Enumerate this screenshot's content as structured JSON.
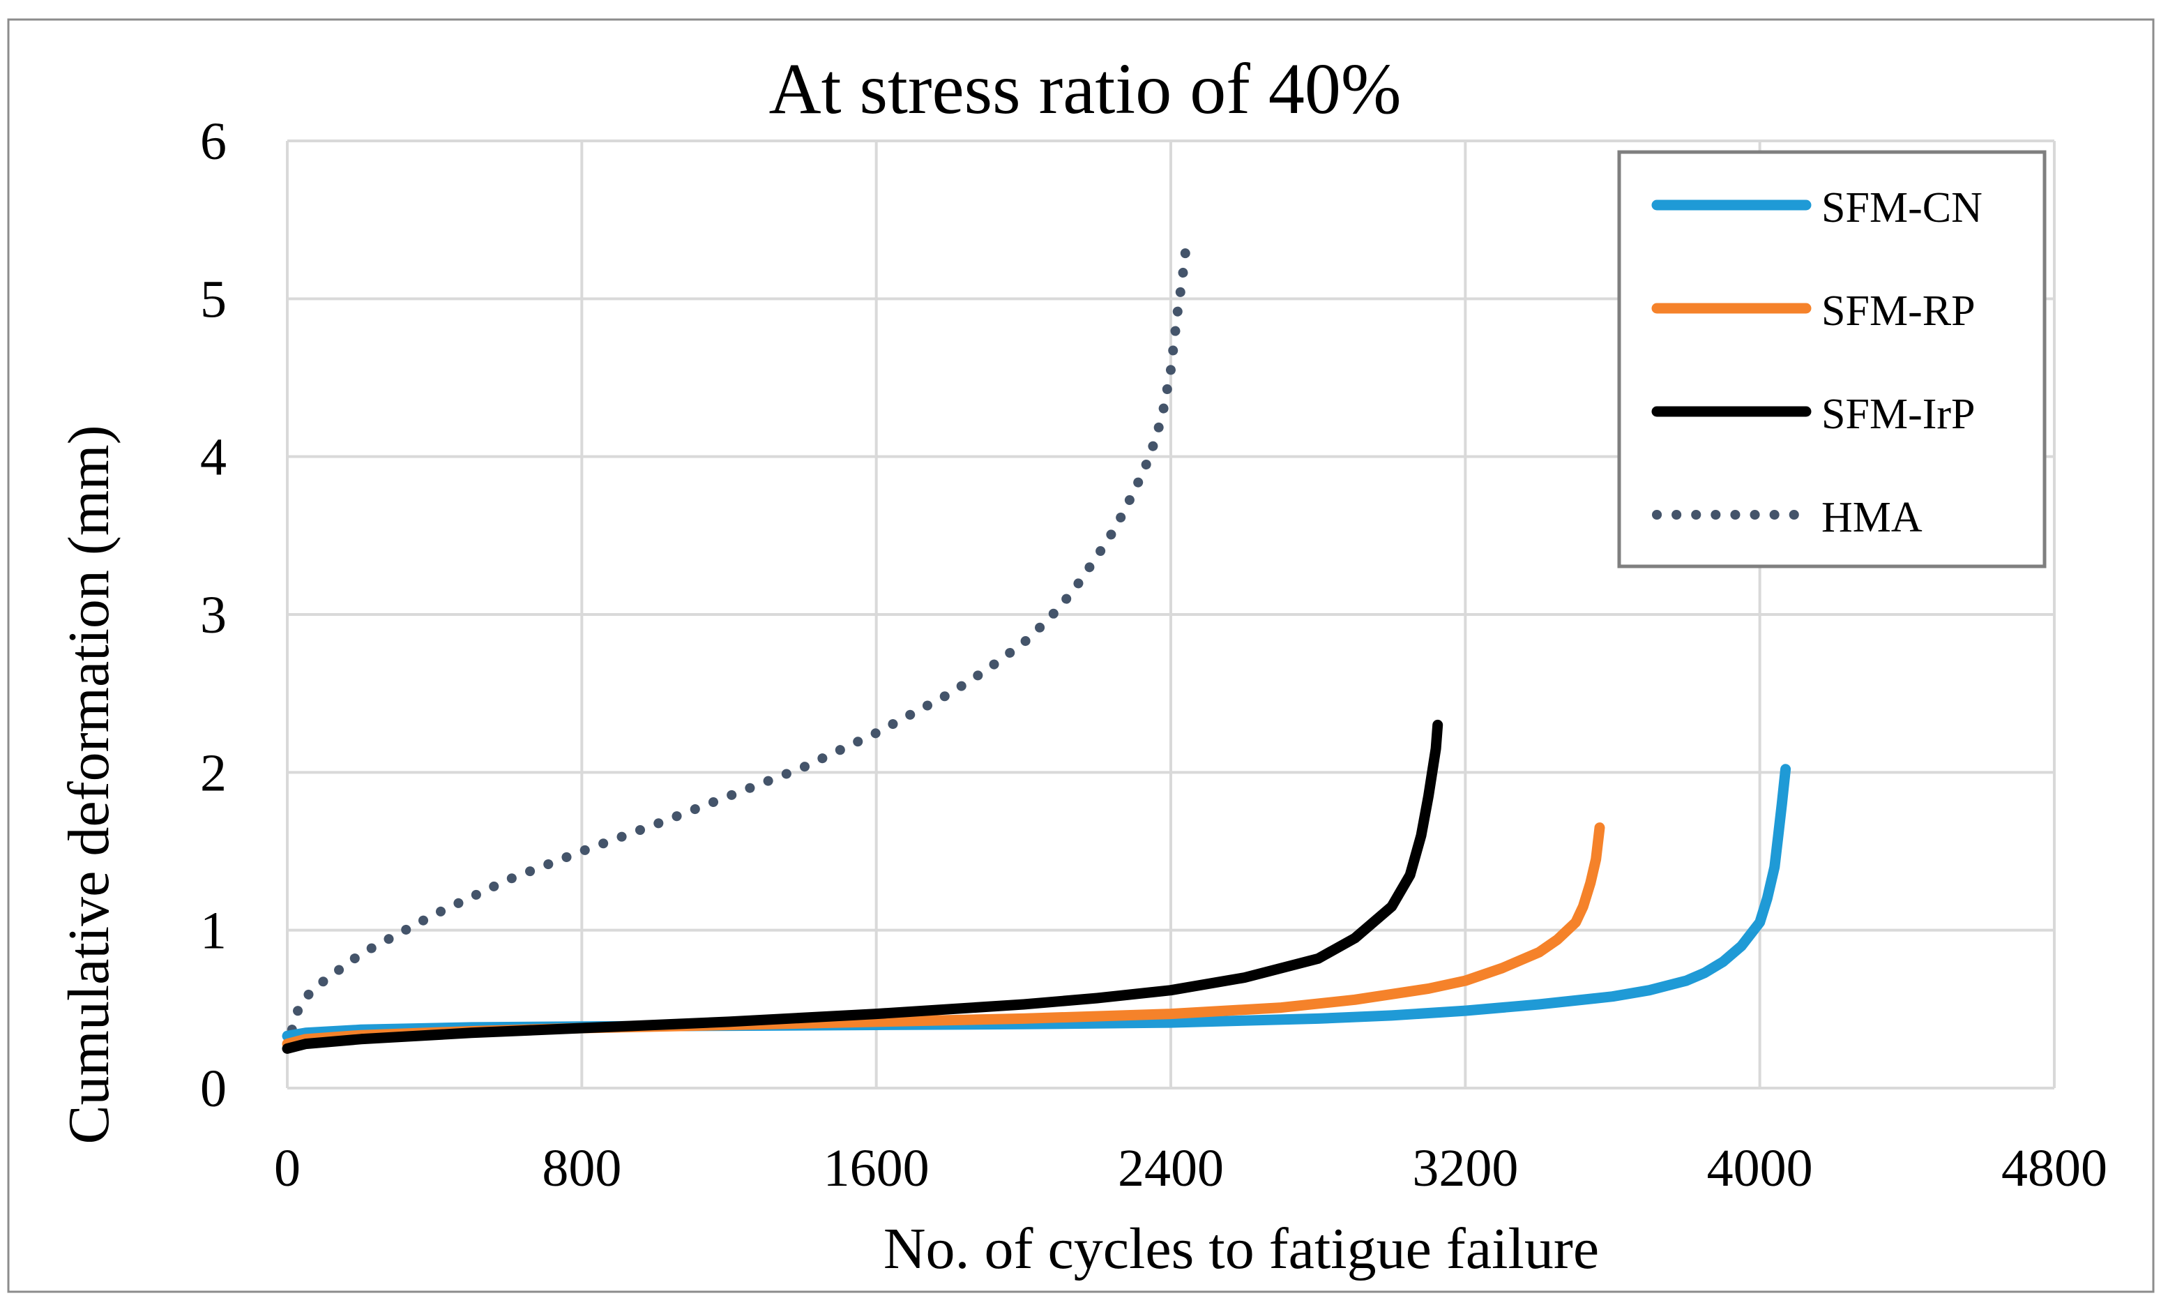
{
  "chart_data": {
    "type": "line",
    "title": "At stress ratio of 40%",
    "xlabel": "No. of cycles to fatigue failure",
    "ylabel": "Cumulative deformation (mm)",
    "xlim": [
      0,
      4800
    ],
    "ylim": [
      0,
      6
    ],
    "xticks": [
      0,
      800,
      1600,
      2400,
      3200,
      4000,
      4800
    ],
    "yticks": [
      0,
      1,
      2,
      3,
      4,
      5,
      6
    ],
    "xtick_labels": [
      "0",
      "800",
      "1600",
      "2400",
      "3200",
      "4000",
      "4800"
    ],
    "ytick_labels": [
      "0",
      "1",
      "2",
      "3",
      "4",
      "5",
      "6"
    ],
    "grid": true,
    "legend_position": "top-right",
    "series": [
      {
        "name": "SFM-CN",
        "color": "#1f9ad6",
        "style": "solid",
        "x": [
          0,
          50,
          200,
          500,
          800,
          1200,
          1600,
          2000,
          2400,
          2800,
          3000,
          3200,
          3400,
          3600,
          3700,
          3800,
          3850,
          3900,
          3950,
          4000,
          4020,
          4040,
          4050,
          4060,
          4070
        ],
        "y": [
          0.33,
          0.35,
          0.37,
          0.385,
          0.39,
          0.395,
          0.4,
          0.405,
          0.415,
          0.44,
          0.46,
          0.49,
          0.53,
          0.58,
          0.62,
          0.68,
          0.73,
          0.8,
          0.9,
          1.05,
          1.2,
          1.4,
          1.6,
          1.8,
          2.02
        ]
      },
      {
        "name": "SFM-RP",
        "color": "#f5822a",
        "style": "solid",
        "x": [
          0,
          50,
          200,
          500,
          800,
          1200,
          1600,
          2000,
          2400,
          2700,
          2900,
          3100,
          3200,
          3300,
          3400,
          3450,
          3500,
          3520,
          3540,
          3555,
          3565
        ],
        "y": [
          0.28,
          0.31,
          0.335,
          0.36,
          0.38,
          0.4,
          0.42,
          0.44,
          0.47,
          0.51,
          0.56,
          0.63,
          0.68,
          0.76,
          0.86,
          0.94,
          1.05,
          1.15,
          1.3,
          1.45,
          1.65
        ]
      },
      {
        "name": "SFM-IrP",
        "color": "#000000",
        "style": "solid",
        "x": [
          0,
          50,
          200,
          500,
          800,
          1200,
          1600,
          2000,
          2200,
          2400,
          2600,
          2800,
          2900,
          3000,
          3050,
          3080,
          3100,
          3110,
          3120,
          3125
        ],
        "y": [
          0.25,
          0.28,
          0.31,
          0.35,
          0.38,
          0.42,
          0.47,
          0.53,
          0.57,
          0.62,
          0.7,
          0.82,
          0.95,
          1.15,
          1.35,
          1.6,
          1.85,
          2.0,
          2.15,
          2.3
        ]
      },
      {
        "name": "HMA",
        "color": "#44546a",
        "style": "dotted",
        "x": [
          0,
          10,
          30,
          60,
          100,
          200,
          400,
          600,
          800,
          1000,
          1200,
          1400,
          1600,
          1800,
          1900,
          2000,
          2050,
          2100,
          2150,
          2200,
          2250,
          2300,
          2330,
          2360,
          2380,
          2400,
          2410,
          2420,
          2430,
          2440
        ],
        "y": [
          0.25,
          0.35,
          0.5,
          0.6,
          0.68,
          0.85,
          1.1,
          1.32,
          1.5,
          1.67,
          1.85,
          2.03,
          2.25,
          2.5,
          2.65,
          2.82,
          2.93,
          3.05,
          3.2,
          3.37,
          3.55,
          3.78,
          3.93,
          4.12,
          4.3,
          4.55,
          4.75,
          4.95,
          5.1,
          5.3
        ]
      }
    ]
  }
}
